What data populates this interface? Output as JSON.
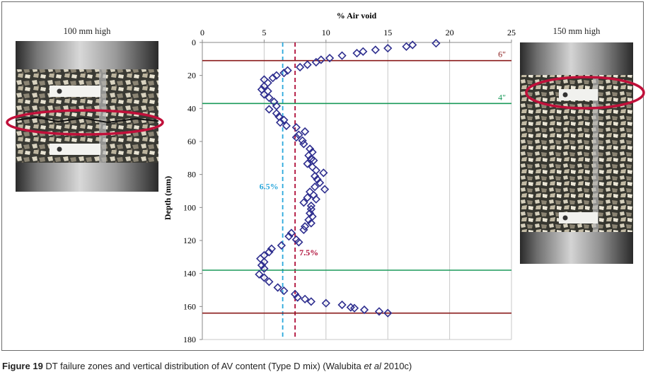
{
  "left_photo": {
    "label": "100 mm high"
  },
  "right_photo": {
    "label": "150 mm high"
  },
  "caption": {
    "figure": "Figure 19",
    "text_before": " DT failure zones and vertical distribution of AV content (Type D mix) (Walubita ",
    "italic": "et al",
    "text_after": " 2010c)"
  },
  "colors": {
    "marker": "#2f2f8f",
    "blue_line": "#2aa7dc",
    "red_line": "#b0103a",
    "green_line": "#1a9a5a",
    "dark_red_line": "#8a1a1a",
    "highlight_ellipse": "#c0103a"
  },
  "chart_data": {
    "type": "scatter",
    "xlabel": "% Air void",
    "ylabel": "Depth (mm)",
    "xlim": [
      0,
      25
    ],
    "ylim": [
      0,
      180
    ],
    "y_inverted": true,
    "x_axis_position": "top",
    "grid": "vertical",
    "x_ticks": [
      0,
      5,
      10,
      15,
      20,
      25
    ],
    "y_ticks": [
      0,
      20,
      40,
      60,
      80,
      100,
      120,
      140,
      160,
      180
    ],
    "series": [
      {
        "marker": "diamond",
        "points": [
          [
            18.9,
            0.5
          ],
          [
            17.0,
            1.5
          ],
          [
            16.5,
            2.5
          ],
          [
            15.0,
            3.5
          ],
          [
            14.0,
            4.5
          ],
          [
            13.0,
            5.5
          ],
          [
            12.5,
            6.5
          ],
          [
            11.3,
            8.0
          ],
          [
            10.3,
            9.5
          ],
          [
            9.6,
            10.5
          ],
          [
            9.2,
            12.0
          ],
          [
            8.5,
            13.5
          ],
          [
            7.9,
            15.0
          ],
          [
            6.9,
            17.0
          ],
          [
            6.6,
            18.5
          ],
          [
            6.0,
            20.0
          ],
          [
            5.7,
            21.5
          ],
          [
            5.0,
            22.5
          ],
          [
            5.3,
            24.5
          ],
          [
            5.0,
            26.5
          ],
          [
            4.8,
            28.5
          ],
          [
            5.3,
            29.5
          ],
          [
            5.0,
            31.5
          ],
          [
            5.4,
            33.5
          ],
          [
            5.8,
            36.0
          ],
          [
            6.0,
            38.5
          ],
          [
            5.4,
            40.5
          ],
          [
            6.0,
            43.0
          ],
          [
            6.2,
            45.0
          ],
          [
            6.6,
            47.0
          ],
          [
            6.3,
            48.5
          ],
          [
            6.8,
            50.5
          ],
          [
            7.6,
            51.5
          ],
          [
            8.3,
            54.0
          ],
          [
            7.8,
            56.0
          ],
          [
            7.6,
            57.5
          ],
          [
            8.1,
            59.5
          ],
          [
            8.2,
            61.5
          ],
          [
            8.7,
            64.5
          ],
          [
            8.9,
            66.5
          ],
          [
            8.6,
            68.5
          ],
          [
            8.8,
            70.5
          ],
          [
            9.0,
            71.5
          ],
          [
            8.5,
            73.5
          ],
          [
            8.9,
            75.5
          ],
          [
            9.2,
            77.5
          ],
          [
            9.8,
            79.0
          ],
          [
            9.1,
            81.0
          ],
          [
            9.3,
            83.0
          ],
          [
            9.5,
            85.0
          ],
          [
            9.1,
            87.5
          ],
          [
            9.9,
            89.0
          ],
          [
            8.7,
            90.5
          ],
          [
            9.0,
            92.5
          ],
          [
            8.5,
            94.0
          ],
          [
            9.2,
            95.0
          ],
          [
            8.2,
            97.0
          ],
          [
            8.8,
            99.0
          ],
          [
            8.8,
            101.0
          ],
          [
            8.7,
            103.5
          ],
          [
            8.9,
            105.5
          ],
          [
            8.6,
            107.5
          ],
          [
            8.8,
            109.5
          ],
          [
            8.3,
            111.5
          ],
          [
            8.2,
            113.5
          ],
          [
            7.2,
            115.5
          ],
          [
            7.0,
            117.5
          ],
          [
            7.6,
            119.5
          ],
          [
            7.8,
            121.0
          ],
          [
            6.4,
            123.0
          ],
          [
            5.6,
            125.0
          ],
          [
            5.4,
            127.0
          ],
          [
            5.0,
            129.0
          ],
          [
            4.7,
            131.0
          ],
          [
            5.0,
            133.0
          ],
          [
            4.8,
            135.0
          ],
          [
            5.0,
            137.0
          ],
          [
            4.6,
            140.5
          ],
          [
            5.0,
            142.5
          ],
          [
            5.4,
            145.0
          ],
          [
            6.1,
            148.5
          ],
          [
            6.6,
            150.5
          ],
          [
            7.5,
            152.5
          ],
          [
            7.7,
            154.5
          ],
          [
            8.3,
            155.5
          ],
          [
            8.8,
            157.0
          ],
          [
            10.0,
            158.0
          ],
          [
            11.3,
            159.0
          ],
          [
            12.0,
            160.5
          ],
          [
            12.3,
            161.0
          ],
          [
            13.1,
            162.0
          ],
          [
            14.3,
            163.0
          ],
          [
            15.0,
            164.0
          ]
        ]
      }
    ],
    "reference_lines": [
      {
        "orientation": "vertical",
        "x": 6.5,
        "style": "dashed",
        "color": "#2aa7dc",
        "label": "6.5%"
      },
      {
        "orientation": "vertical",
        "x": 7.5,
        "style": "dashed",
        "color": "#b0103a",
        "label": "7.5%"
      },
      {
        "orientation": "horizontal",
        "y": 11,
        "style": "solid",
        "color": "#8a1a1a",
        "label": "6\""
      },
      {
        "orientation": "horizontal",
        "y": 37,
        "style": "solid",
        "color": "#1a9a5a",
        "label": "4\""
      },
      {
        "orientation": "horizontal",
        "y": 138,
        "style": "solid",
        "color": "#1a9a5a",
        "label": ""
      },
      {
        "orientation": "horizontal",
        "y": 164,
        "style": "solid",
        "color": "#8a1a1a",
        "label": ""
      }
    ]
  }
}
